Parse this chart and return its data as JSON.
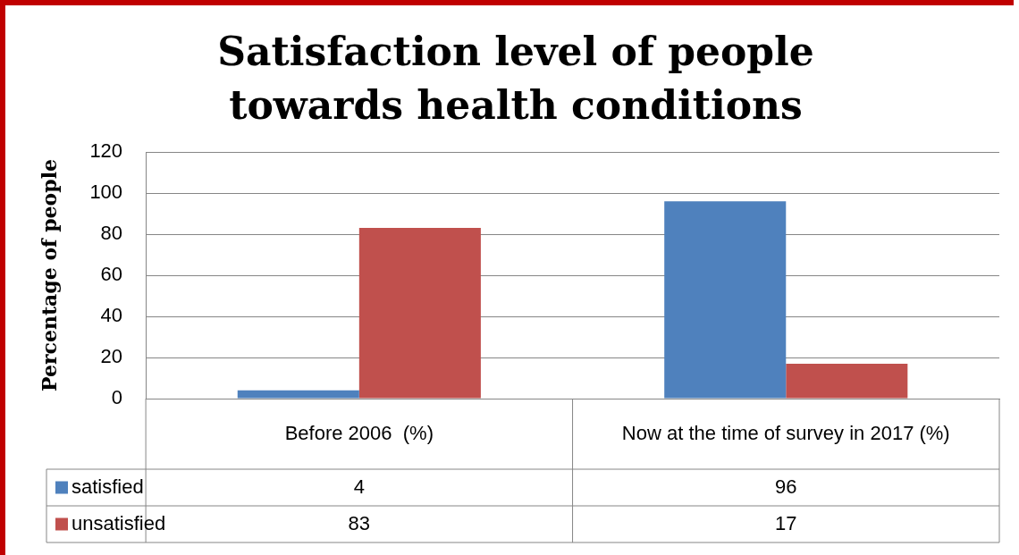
{
  "chart_data": {
    "type": "bar",
    "title": "Satisfaction level of people towards health conditions",
    "ylabel": "Percentage of people",
    "categories": [
      "Before 2006  (%)",
      "Now at the time of survey in 2017 (%)"
    ],
    "series": [
      {
        "name": "satisfied",
        "color": "#4f81bd",
        "values": [
          4,
          96
        ]
      },
      {
        "name": "unsatisfied",
        "color": "#c0504d",
        "values": [
          83,
          17
        ]
      }
    ],
    "ylim": [
      0,
      120
    ],
    "yticks": [
      0,
      20,
      40,
      60,
      80,
      100,
      120
    ],
    "grid": "y",
    "legend": "bottom",
    "data_labels": true
  }
}
